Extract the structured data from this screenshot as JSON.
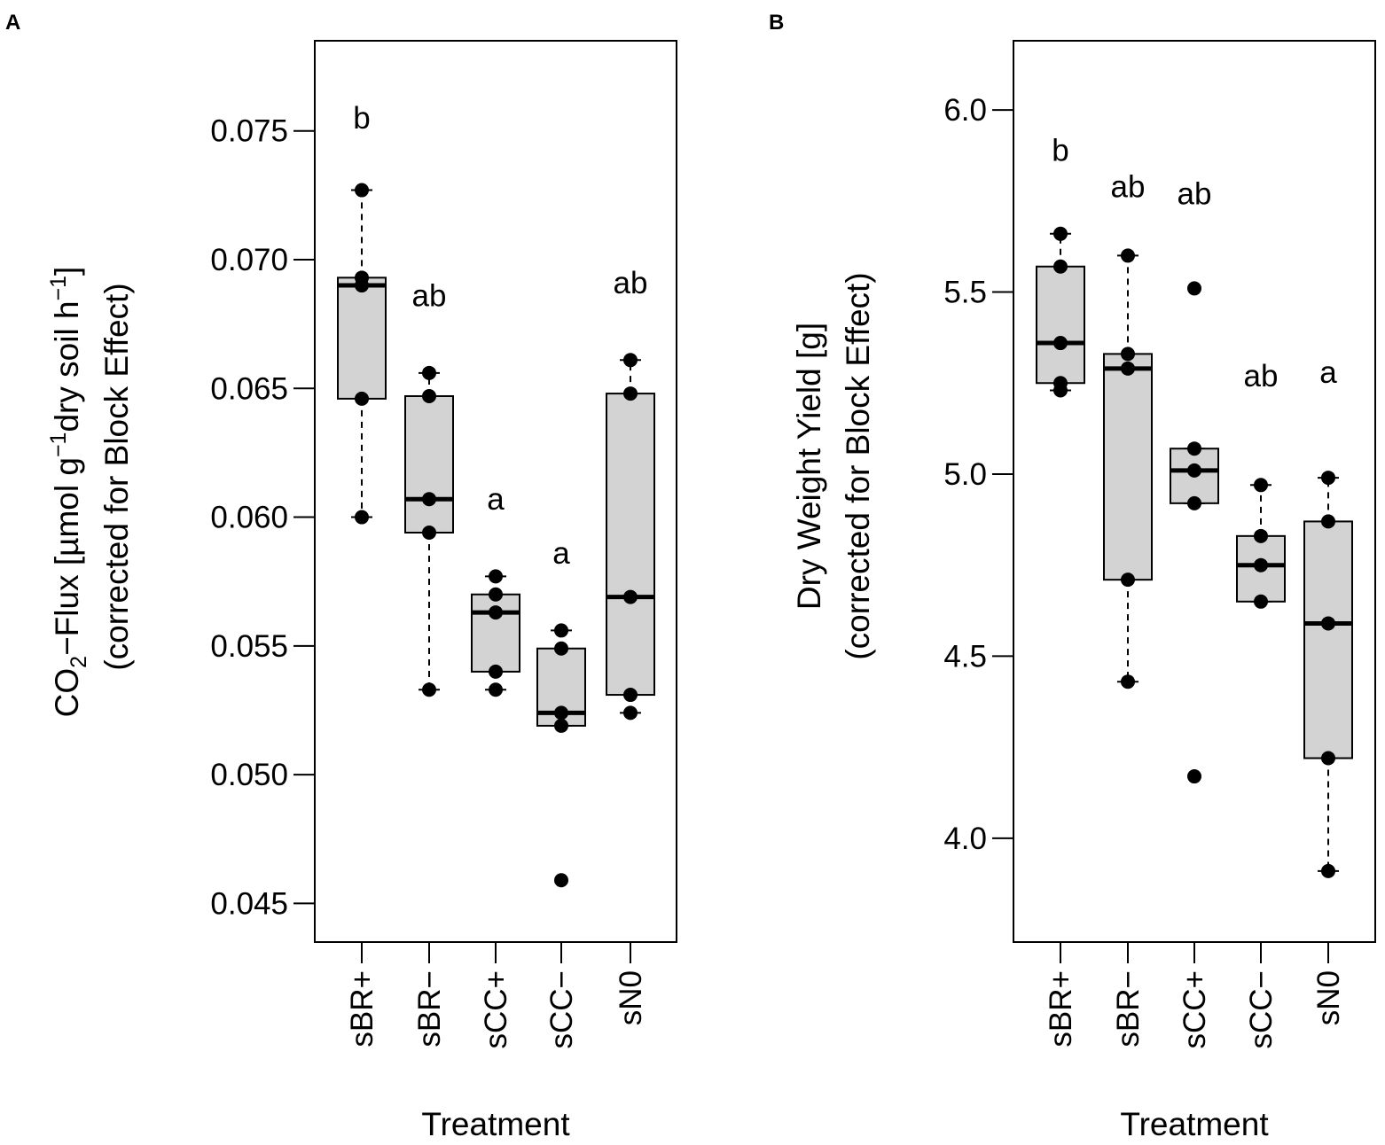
{
  "chart_data": [
    {
      "panel": "A",
      "type": "box",
      "ylabel_line1": "CO2−Flux [µmol g⁻¹dry soil h⁻¹]",
      "ylabel_line1_parts": {
        "pre": "CO",
        "sub": "2",
        "mid1": "−Flux [µmol g",
        "sup1": "−1",
        "mid2": "dry soil h",
        "sup2": "−1",
        "post": "]"
      },
      "ylabel_line2": "(corrected for Block  Effect)",
      "xlabel": "Treatment",
      "ylim": [
        0.0435,
        0.0785
      ],
      "yticks": [
        "0.045",
        "0.050",
        "0.055",
        "0.060",
        "0.065",
        "0.070",
        "0.075"
      ],
      "categories": [
        "sBR+",
        "sBR−",
        "sCC+",
        "sCC−",
        "sN0"
      ],
      "boxes": [
        {
          "q1": 0.0646,
          "median": 0.069,
          "q3": 0.0693,
          "whisker_low": 0.06,
          "whisker_high": 0.0727,
          "letter": "b",
          "letter_y": 0.0755,
          "points": [
            0.0727,
            0.0693,
            0.069,
            0.0646,
            0.06
          ]
        },
        {
          "q1": 0.0594,
          "median": 0.0607,
          "q3": 0.0647,
          "whisker_low": 0.0533,
          "whisker_high": 0.0656,
          "letter": "ab",
          "letter_y": 0.0686,
          "points": [
            0.0656,
            0.0647,
            0.0607,
            0.0594,
            0.0533
          ]
        },
        {
          "q1": 0.054,
          "median": 0.0563,
          "q3": 0.057,
          "whisker_low": 0.0533,
          "whisker_high": 0.0577,
          "letter": "a",
          "letter_y": 0.0607,
          "points": [
            0.0577,
            0.057,
            0.0563,
            0.054,
            0.0533
          ]
        },
        {
          "q1": 0.0519,
          "median": 0.0524,
          "q3": 0.0549,
          "whisker_low": 0.0519,
          "whisker_high": 0.0556,
          "letter": "a",
          "letter_y": 0.0586,
          "points": [
            0.0556,
            0.0549,
            0.0524,
            0.0519,
            0.0459
          ]
        },
        {
          "q1": 0.0531,
          "median": 0.0569,
          "q3": 0.0648,
          "whisker_low": 0.0524,
          "whisker_high": 0.0661,
          "letter": "ab",
          "letter_y": 0.0691,
          "points": [
            0.0661,
            0.0648,
            0.0569,
            0.0531,
            0.0524
          ]
        }
      ]
    },
    {
      "panel": "B",
      "type": "box",
      "ylabel_line1": "Dry Weight Yield [g]",
      "ylabel_line2": "(corrected for Block Effect)",
      "xlabel": "Treatment",
      "ylim": [
        3.715,
        6.19
      ],
      "yticks": [
        "4.0",
        "4.5",
        "5.0",
        "5.5",
        "6.0"
      ],
      "categories": [
        "sBR+",
        "sBR−",
        "sCC+",
        "sCC−",
        "sN0"
      ],
      "boxes": [
        {
          "q1": 5.25,
          "median": 5.36,
          "q3": 5.57,
          "whisker_low": 5.23,
          "whisker_high": 5.66,
          "letter": "b",
          "letter_y": 5.89,
          "points": [
            5.66,
            5.57,
            5.36,
            5.25,
            5.23
          ]
        },
        {
          "q1": 4.71,
          "median": 5.29,
          "q3": 5.33,
          "whisker_low": 4.43,
          "whisker_high": 5.6,
          "letter": "ab",
          "letter_y": 5.79,
          "points": [
            5.6,
            5.33,
            5.29,
            4.71,
            4.43
          ]
        },
        {
          "q1": 4.92,
          "median": 5.01,
          "q3": 5.07,
          "whisker_low": 4.92,
          "whisker_high": 5.07,
          "letter": "ab",
          "letter_y": 5.77,
          "points": [
            5.51,
            5.07,
            5.01,
            4.92,
            4.17
          ]
        },
        {
          "q1": 4.65,
          "median": 4.75,
          "q3": 4.83,
          "whisker_low": 4.65,
          "whisker_high": 4.97,
          "letter": "ab",
          "letter_y": 5.27,
          "points": [
            4.97,
            4.83,
            4.75,
            4.65
          ]
        },
        {
          "q1": 4.22,
          "median": 4.59,
          "q3": 4.87,
          "whisker_low": 3.91,
          "whisker_high": 4.99,
          "letter": "a",
          "letter_y": 5.28,
          "points": [
            4.99,
            4.87,
            4.59,
            4.22,
            3.91
          ]
        }
      ]
    }
  ]
}
